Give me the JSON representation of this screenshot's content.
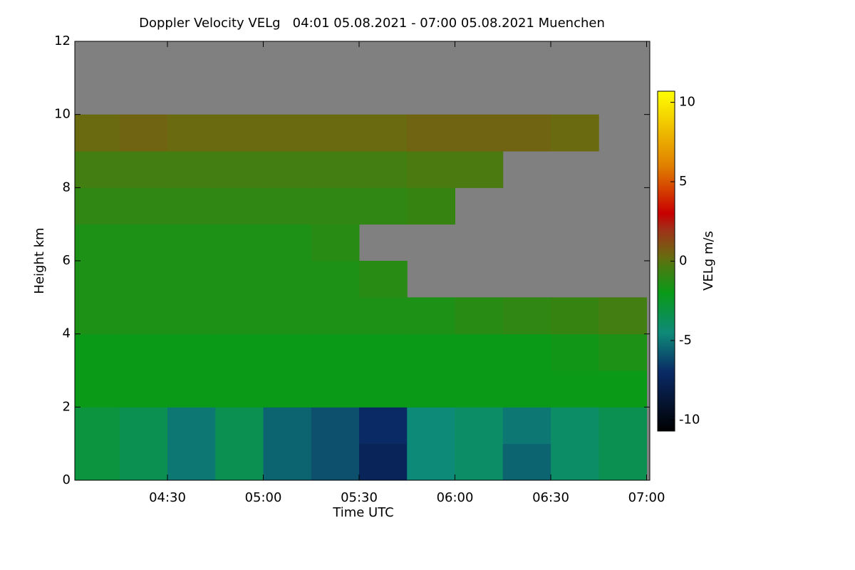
{
  "chart_data": {
    "type": "heatmap",
    "title": "Doppler Velocity VELg   04:01 05.08.2021 - 07:00 05.08.2021 Muenchen",
    "x_label": "Time UTC",
    "y_label": "Height km",
    "colorbar_label": "VELg m/s",
    "xlim": [
      4.0167,
      7.0167
    ],
    "xticks": [
      {
        "value": 4.5,
        "label": "04:30"
      },
      {
        "value": 5.0,
        "label": "05:00"
      },
      {
        "value": 5.5,
        "label": "05:30"
      },
      {
        "value": 6.0,
        "label": "06:00"
      },
      {
        "value": 6.5,
        "label": "06:30"
      },
      {
        "value": 7.0,
        "label": "07:00"
      }
    ],
    "ylim": [
      0,
      12
    ],
    "yticks": [
      0,
      2,
      4,
      6,
      8,
      10,
      12
    ],
    "clim": [
      -10.7,
      10.7
    ],
    "cticks": [
      -10,
      -5,
      0,
      5,
      10
    ],
    "colorscale": [
      [
        -10.7,
        "#000000"
      ],
      [
        -7,
        "#0a2a66"
      ],
      [
        -4.5,
        "#0e8a78"
      ],
      [
        -2,
        "#0a9a18"
      ],
      [
        -0.3,
        "#4a7a10"
      ],
      [
        0.3,
        "#6a6a10"
      ],
      [
        2,
        "#a03018"
      ],
      [
        3,
        "#c80000"
      ],
      [
        6,
        "#e08000"
      ],
      [
        10.7,
        "#ffff00"
      ]
    ],
    "nan_color": "#808080",
    "x": [
      4.125,
      4.375,
      4.625,
      4.875,
      5.125,
      5.375,
      5.625,
      5.875,
      6.125,
      6.375,
      6.625,
      6.875
    ],
    "y": [
      0.5,
      1.5,
      2.5,
      3.5,
      4.5,
      5.5,
      6.5,
      7.5,
      8.5,
      9.5,
      10.5,
      11.5
    ],
    "z": [
      [
        -3,
        -3.5,
        -5,
        -3.5,
        -5.5,
        -6,
        -7.5,
        -4.5,
        -4,
        -5.5,
        -4,
        -3.5
      ],
      [
        -3,
        -3.5,
        -5,
        -3.5,
        -5.5,
        -6,
        -7,
        -4.5,
        -4,
        -5,
        -4,
        -3.5
      ],
      [
        -2,
        -2,
        -2,
        -2,
        -2,
        -2,
        -2,
        -2,
        -2,
        -2,
        -2,
        -2
      ],
      [
        -2,
        -2,
        -2,
        -2,
        -2,
        -2,
        -2,
        -2,
        -2,
        -2,
        -1.8,
        -1.5
      ],
      [
        -1.5,
        -1.5,
        -1.5,
        -1.5,
        -1.5,
        -1.5,
        -1.5,
        -1.5,
        -1.2,
        -1,
        -0.8,
        -0.5
      ],
      [
        -1.5,
        -1.5,
        -1.5,
        -1.5,
        -1.5,
        -1.5,
        -1.2,
        null,
        null,
        null,
        null,
        null
      ],
      [
        -1.5,
        -1.5,
        -1.5,
        -1.5,
        -1.5,
        -1.2,
        null,
        null,
        null,
        null,
        null,
        null
      ],
      [
        -1,
        -1,
        -1,
        -1,
        -1,
        -1,
        -1,
        -0.8,
        null,
        null,
        null,
        null
      ],
      [
        -0.5,
        -0.5,
        -0.5,
        -0.5,
        -0.5,
        -0.5,
        -0.5,
        -0.3,
        -0.3,
        null,
        null,
        null
      ],
      [
        0.3,
        0.5,
        0.3,
        0.3,
        0.3,
        0.3,
        0.3,
        0.5,
        0.5,
        0.5,
        0.3,
        null
      ],
      [
        null,
        null,
        null,
        null,
        null,
        null,
        null,
        null,
        null,
        null,
        null,
        null
      ],
      [
        null,
        null,
        null,
        null,
        null,
        null,
        null,
        null,
        null,
        null,
        null,
        null
      ]
    ]
  }
}
